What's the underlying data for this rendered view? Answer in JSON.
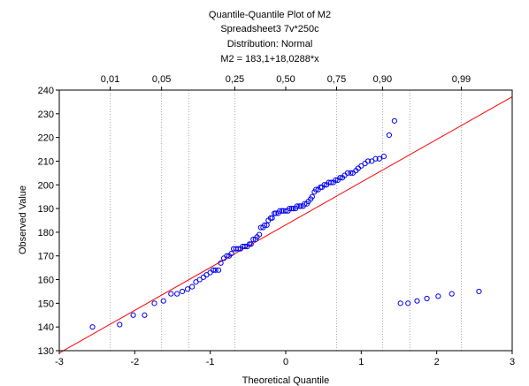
{
  "chart_data": {
    "type": "scatter",
    "title": "Quantile-Quantile Plot of M2",
    "subtitles": [
      "Spreadsheet3 7v*250c",
      "Distribution: Normal",
      "M2 = 183,1+18,0288*x"
    ],
    "xlabel": "Theoretical Quantile",
    "ylabel": "Observed Value",
    "xlim": [
      -3,
      3
    ],
    "ylim": [
      130,
      240
    ],
    "x_ticks": [
      "-3",
      "-2",
      "-1",
      "0",
      "1",
      "2",
      "3"
    ],
    "y_ticks": [
      "130",
      "140",
      "150",
      "160",
      "170",
      "180",
      "190",
      "200",
      "210",
      "220",
      "230",
      "240"
    ],
    "probability_ticks": [
      {
        "label": "0,01",
        "z": -2.326
      },
      {
        "label": "0,05",
        "z": -1.645
      },
      {
        "label": "0,25",
        "z": -0.674
      },
      {
        "label": "0,50",
        "z": 0.0
      },
      {
        "label": "0,75",
        "z": 0.674
      },
      {
        "label": "0,90",
        "z": 1.282
      },
      {
        "label": "0,99",
        "z": 2.326
      }
    ],
    "probability_gridlines_z": [
      -2.326,
      -1.645,
      -1.282,
      -0.674,
      0.674,
      1.282,
      1.645,
      2.326
    ],
    "fit_line": {
      "intercept": 183.1,
      "slope": 18.0288
    },
    "colors": {
      "points": "#0000ee",
      "fit_line": "#ff0000",
      "grid": "#aaaaaa",
      "axes": "#000000"
    },
    "series": [
      {
        "x": [
          -2.56,
          -2.2,
          -2.02,
          -1.87,
          -1.74,
          -1.62,
          -1.52,
          -1.44,
          -1.37,
          -1.3,
          -1.24,
          -1.19,
          -1.14,
          -1.09,
          -1.05,
          -1.0,
          -0.96,
          -0.93,
          -0.89,
          -0.86,
          -0.82,
          -0.78,
          -0.75,
          -0.72,
          -0.69,
          -0.66,
          -0.63,
          -0.6,
          -0.57,
          -0.54,
          -0.51,
          -0.48,
          -0.46,
          -0.43,
          -0.4,
          -0.38,
          -0.35,
          -0.33,
          -0.3,
          -0.28,
          -0.25,
          -0.23,
          -0.2,
          -0.18,
          -0.15,
          -0.13,
          -0.1,
          -0.08,
          -0.05,
          -0.03,
          0.0,
          0.03,
          0.05,
          0.08,
          0.1,
          0.13,
          0.15,
          0.18,
          0.2,
          0.23,
          0.25,
          0.28,
          0.3,
          0.33,
          0.35,
          0.38,
          0.4,
          0.43,
          0.46,
          0.48,
          0.51,
          0.54,
          0.57,
          0.6,
          0.63,
          0.66,
          0.69,
          0.72,
          0.75,
          0.78,
          0.82,
          0.86,
          0.89,
          0.93,
          0.96,
          1.0,
          1.05,
          1.09,
          1.14,
          1.19,
          1.24,
          1.3,
          1.37,
          1.44,
          1.52,
          1.62,
          1.74,
          1.87,
          2.02,
          2.2,
          2.56
        ],
        "y": [
          140,
          141,
          145,
          145,
          150,
          151,
          154,
          154,
          155,
          156,
          157,
          159,
          160,
          161,
          162,
          163,
          164,
          164,
          164,
          167,
          169,
          170,
          170,
          171,
          173,
          173,
          173,
          173,
          174,
          174,
          174,
          175,
          175,
          177,
          177,
          178,
          179,
          182,
          182,
          183,
          183,
          185,
          186,
          186,
          188,
          188,
          188,
          189,
          189,
          189,
          189,
          189,
          190,
          190,
          190,
          190,
          191,
          191,
          191,
          191,
          192,
          192,
          193,
          194,
          195,
          197,
          198,
          198,
          199,
          199,
          200,
          200,
          201,
          201,
          201,
          202,
          202,
          203,
          203,
          204,
          205,
          205,
          205,
          206,
          207,
          208,
          209,
          210,
          210,
          211,
          211,
          212,
          221,
          227,
          150,
          150,
          151,
          152,
          153,
          154,
          155
        ]
      }
    ]
  }
}
